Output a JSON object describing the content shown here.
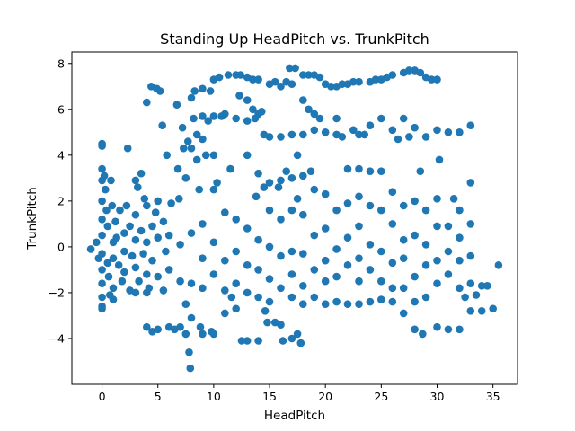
{
  "chart_data": {
    "type": "scatter",
    "title": "Standing Up HeadPitch vs. TrunkPitch",
    "xlabel": "HeadPitch",
    "ylabel": "TrunkPitch",
    "xlim": [
      -2.7,
      37.2
    ],
    "ylim": [
      -6.0,
      8.5
    ],
    "xticks": [
      0,
      5,
      10,
      15,
      20,
      25,
      30,
      35
    ],
    "yticks": [
      -4,
      -2,
      0,
      2,
      4,
      6,
      8
    ],
    "grid": false,
    "legend": "none",
    "marker_color": "#1f77b4",
    "points": [
      [
        -1,
        -0.1
      ],
      [
        -0.5,
        0.2
      ],
      [
        -0.3,
        -0.5
      ],
      [
        0,
        4.5
      ],
      [
        0,
        4.4
      ],
      [
        0,
        3.4
      ],
      [
        0,
        2.9
      ],
      [
        0,
        2.0
      ],
      [
        0,
        1.2
      ],
      [
        0,
        0.5
      ],
      [
        0,
        -0.3
      ],
      [
        0,
        -1.0
      ],
      [
        0,
        -1.6
      ],
      [
        0,
        -2.2
      ],
      [
        0,
        -2.6
      ],
      [
        0,
        -2.7
      ],
      [
        0.2,
        3.1
      ],
      [
        0.3,
        2.5
      ],
      [
        0.4,
        1.6
      ],
      [
        0.5,
        0.9
      ],
      [
        0.5,
        -0.7
      ],
      [
        0.6,
        -1.3
      ],
      [
        0.7,
        -2.1
      ],
      [
        0.8,
        2.9
      ],
      [
        0.9,
        1.8
      ],
      [
        1,
        0.2
      ],
      [
        1,
        -0.5
      ],
      [
        1,
        -1.8
      ],
      [
        1,
        -2.3
      ],
      [
        1.2,
        1.1
      ],
      [
        1.3,
        0.4
      ],
      [
        1.5,
        -0.8
      ],
      [
        1.6,
        1.6
      ],
      [
        1.8,
        -1.5
      ],
      [
        2,
        0.6
      ],
      [
        2,
        -0.2
      ],
      [
        2,
        -1.1
      ],
      [
        2.2,
        1.8
      ],
      [
        2.3,
        4.3
      ],
      [
        2.5,
        -1.9
      ],
      [
        2.5,
        0.9
      ],
      [
        2.7,
        -0.4
      ],
      [
        3,
        2.9
      ],
      [
        3,
        1.4
      ],
      [
        3,
        0.3
      ],
      [
        3,
        -0.9
      ],
      [
        3,
        -2.0
      ],
      [
        3.2,
        2.6
      ],
      [
        3.3,
        -1.5
      ],
      [
        3.5,
        3.2
      ],
      [
        3.5,
        0.7
      ],
      [
        3.7,
        -0.3
      ],
      [
        3.8,
        2.1
      ],
      [
        4,
        6.3
      ],
      [
        4,
        1.8
      ],
      [
        4,
        0.2
      ],
      [
        4,
        -1.2
      ],
      [
        4,
        -2.0
      ],
      [
        4,
        -3.5
      ],
      [
        4.2,
        -1.8
      ],
      [
        4.4,
        7.0
      ],
      [
        4.5,
        0.9
      ],
      [
        4.5,
        -0.6
      ],
      [
        4.5,
        -3.7
      ],
      [
        4.8,
        1.5
      ],
      [
        4.9,
        6.9
      ],
      [
        5,
        2.0
      ],
      [
        5,
        0.4
      ],
      [
        5,
        -1.3
      ],
      [
        5,
        -3.6
      ],
      [
        5.2,
        6.8
      ],
      [
        5.4,
        5.3
      ],
      [
        5.5,
        -1.9
      ],
      [
        5.5,
        1.1
      ],
      [
        5.7,
        -0.2
      ],
      [
        5.8,
        4.0
      ],
      [
        6,
        0.5
      ],
      [
        6,
        -3.5
      ],
      [
        6,
        -1.0
      ],
      [
        6.2,
        1.9
      ],
      [
        6.5,
        -3.6
      ],
      [
        6.7,
        6.2
      ],
      [
        6.8,
        3.4
      ],
      [
        6.9,
        2.1
      ],
      [
        7,
        0.1
      ],
      [
        7,
        -1.5
      ],
      [
        7,
        -3.5
      ],
      [
        7.2,
        5.2
      ],
      [
        7.3,
        4.3
      ],
      [
        7.5,
        3.0
      ],
      [
        7.5,
        -2.5
      ],
      [
        7.5,
        -3.8
      ],
      [
        7.7,
        4.6
      ],
      [
        7.8,
        -4.6
      ],
      [
        7.9,
        -5.3
      ],
      [
        8,
        6.5
      ],
      [
        8,
        4.3
      ],
      [
        8,
        0.6
      ],
      [
        8,
        -1.6
      ],
      [
        8,
        -3.1
      ],
      [
        8.2,
        5.6
      ],
      [
        8.3,
        6.8
      ],
      [
        8.5,
        4.9
      ],
      [
        8.5,
        3.8
      ],
      [
        8.7,
        2.5
      ],
      [
        8.8,
        -3.5
      ],
      [
        9,
        6.9
      ],
      [
        9,
        5.7
      ],
      [
        9,
        4.7
      ],
      [
        9,
        1.0
      ],
      [
        9,
        -0.5
      ],
      [
        9,
        -1.8
      ],
      [
        9,
        -3.8
      ],
      [
        9.3,
        4.0
      ],
      [
        9.5,
        5.5
      ],
      [
        9.7,
        6.8
      ],
      [
        9.8,
        -3.7
      ],
      [
        10,
        5.7
      ],
      [
        10,
        7.3
      ],
      [
        10,
        4.0
      ],
      [
        10,
        2.5
      ],
      [
        10,
        0.2
      ],
      [
        10,
        -1.2
      ],
      [
        10,
        -3.8
      ],
      [
        10.3,
        2.8
      ],
      [
        10.5,
        7.4
      ],
      [
        10.7,
        5.7
      ],
      [
        11,
        5.8
      ],
      [
        11,
        1.5
      ],
      [
        11,
        -0.6
      ],
      [
        11,
        -1.9
      ],
      [
        11,
        -2.9
      ],
      [
        11.3,
        7.5
      ],
      [
        11.5,
        3.4
      ],
      [
        11.6,
        -2.2
      ],
      [
        12,
        7.5
      ],
      [
        12,
        5.6
      ],
      [
        12,
        1.2
      ],
      [
        12,
        -0.2
      ],
      [
        12,
        -1.6
      ],
      [
        12,
        -2.7
      ],
      [
        12.3,
        6.6
      ],
      [
        12.4,
        7.5
      ],
      [
        12.5,
        -4.1
      ],
      [
        13,
        6.4
      ],
      [
        13,
        7.4
      ],
      [
        13,
        5.5
      ],
      [
        13,
        4.0
      ],
      [
        13,
        0.8
      ],
      [
        13,
        -0.8
      ],
      [
        13,
        -2.0
      ],
      [
        13,
        -4.1
      ],
      [
        13.5,
        6.0
      ],
      [
        13.5,
        7.3
      ],
      [
        13.7,
        5.6
      ],
      [
        13.8,
        2.2
      ],
      [
        14,
        7.3
      ],
      [
        14,
        5.8
      ],
      [
        14,
        3.2
      ],
      [
        14,
        0.3
      ],
      [
        14,
        -1.0
      ],
      [
        14,
        -2.2
      ],
      [
        14,
        -4.1
      ],
      [
        14.3,
        5.9
      ],
      [
        14.5,
        4.9
      ],
      [
        14.5,
        2.6
      ],
      [
        14.6,
        -2.8
      ],
      [
        14.8,
        -3.3
      ],
      [
        15,
        7.1
      ],
      [
        15,
        4.8
      ],
      [
        15,
        2.8
      ],
      [
        15,
        1.6
      ],
      [
        15,
        0.0
      ],
      [
        15,
        -1.4
      ],
      [
        15,
        -2.4
      ],
      [
        15.5,
        7.2
      ],
      [
        15.5,
        -3.3
      ],
      [
        15.8,
        2.6
      ],
      [
        16,
        7.0
      ],
      [
        16,
        4.8
      ],
      [
        16,
        2.9
      ],
      [
        16,
        1.2
      ],
      [
        16,
        -0.4
      ],
      [
        16,
        -1.8
      ],
      [
        16,
        -3.4
      ],
      [
        16.2,
        -4.1
      ],
      [
        16.5,
        7.2
      ],
      [
        16.5,
        3.3
      ],
      [
        16.8,
        7.8
      ],
      [
        17,
        7.1
      ],
      [
        17,
        4.9
      ],
      [
        17,
        3.0
      ],
      [
        17,
        1.6
      ],
      [
        17,
        -0.2
      ],
      [
        17,
        -1.2
      ],
      [
        17,
        -2.2
      ],
      [
        17,
        -4.0
      ],
      [
        17.3,
        7.8
      ],
      [
        17.5,
        4.0
      ],
      [
        17.5,
        2.1
      ],
      [
        17.5,
        -3.8
      ],
      [
        17.8,
        -4.2
      ],
      [
        18,
        7.5
      ],
      [
        18,
        6.4
      ],
      [
        18,
        4.9
      ],
      [
        18,
        3.1
      ],
      [
        18,
        1.4
      ],
      [
        18,
        -0.3
      ],
      [
        18,
        -1.7
      ],
      [
        18,
        -2.5
      ],
      [
        18.5,
        7.5
      ],
      [
        18.5,
        6.0
      ],
      [
        18.7,
        3.3
      ],
      [
        19,
        7.5
      ],
      [
        19,
        5.8
      ],
      [
        19,
        5.1
      ],
      [
        19,
        2.5
      ],
      [
        19,
        0.5
      ],
      [
        19,
        -1.0
      ],
      [
        19,
        -2.2
      ],
      [
        19.5,
        5.6
      ],
      [
        19.5,
        7.4
      ],
      [
        20,
        7.1
      ],
      [
        20,
        5.0
      ],
      [
        20,
        2.3
      ],
      [
        20,
        0.8
      ],
      [
        20,
        -0.6
      ],
      [
        20,
        -1.5
      ],
      [
        20,
        -2.5
      ],
      [
        20.5,
        7.0
      ],
      [
        21,
        7.0
      ],
      [
        21,
        5.6
      ],
      [
        21,
        4.9
      ],
      [
        21,
        1.6
      ],
      [
        21,
        -0.1
      ],
      [
        21,
        -1.3
      ],
      [
        21,
        -2.4
      ],
      [
        21.5,
        7.1
      ],
      [
        21.5,
        4.8
      ],
      [
        22,
        7.1
      ],
      [
        22,
        3.4
      ],
      [
        22,
        1.9
      ],
      [
        22,
        0.4
      ],
      [
        22,
        -0.8
      ],
      [
        22,
        -2.5
      ],
      [
        22.5,
        7.2
      ],
      [
        22.5,
        5.1
      ],
      [
        23,
        7.2
      ],
      [
        23,
        4.9
      ],
      [
        23,
        3.4
      ],
      [
        23,
        2.2
      ],
      [
        23,
        0.9
      ],
      [
        23,
        -0.5
      ],
      [
        23,
        -1.5
      ],
      [
        23,
        -2.5
      ],
      [
        23.5,
        4.9
      ],
      [
        24,
        7.2
      ],
      [
        24,
        5.3
      ],
      [
        24,
        3.3
      ],
      [
        24,
        1.8
      ],
      [
        24,
        0.1
      ],
      [
        24,
        -1.0
      ],
      [
        24,
        -2.4
      ],
      [
        24.5,
        7.3
      ],
      [
        25,
        7.3
      ],
      [
        25,
        5.6
      ],
      [
        25,
        3.3
      ],
      [
        25,
        1.6
      ],
      [
        25,
        -0.2
      ],
      [
        25,
        -1.5
      ],
      [
        25,
        -2.3
      ],
      [
        25.5,
        7.4
      ],
      [
        26,
        7.5
      ],
      [
        26,
        5.1
      ],
      [
        26,
        2.4
      ],
      [
        26,
        1.0
      ],
      [
        26,
        -0.7
      ],
      [
        26,
        -1.8
      ],
      [
        26,
        -2.4
      ],
      [
        26.5,
        4.7
      ],
      [
        27,
        7.6
      ],
      [
        27,
        5.6
      ],
      [
        27,
        1.8
      ],
      [
        27,
        0.3
      ],
      [
        27,
        -0.5
      ],
      [
        27,
        -1.8
      ],
      [
        27,
        -2.9
      ],
      [
        27.5,
        7.7
      ],
      [
        27.5,
        4.8
      ],
      [
        28,
        7.7
      ],
      [
        28,
        5.2
      ],
      [
        28,
        2.0
      ],
      [
        28,
        0.5
      ],
      [
        28,
        -1.3
      ],
      [
        28,
        -2.4
      ],
      [
        28,
        -3.6
      ],
      [
        28.5,
        7.6
      ],
      [
        28.5,
        3.3
      ],
      [
        28.7,
        -3.8
      ],
      [
        29,
        7.4
      ],
      [
        29,
        4.8
      ],
      [
        29,
        1.6
      ],
      [
        29,
        0.1
      ],
      [
        29,
        -0.8
      ],
      [
        29,
        -2.2
      ],
      [
        29.5,
        7.3
      ],
      [
        30,
        7.3
      ],
      [
        30,
        5.1
      ],
      [
        30,
        2.1
      ],
      [
        30,
        0.9
      ],
      [
        30,
        -0.6
      ],
      [
        30,
        -1.6
      ],
      [
        30,
        -3.5
      ],
      [
        30.2,
        3.8
      ],
      [
        31,
        5.0
      ],
      [
        31,
        0.9
      ],
      [
        31,
        -0.2
      ],
      [
        31,
        -1.2
      ],
      [
        31,
        -3.6
      ],
      [
        31.5,
        2.1
      ],
      [
        32,
        5.0
      ],
      [
        32,
        1.6
      ],
      [
        32,
        0.4
      ],
      [
        32,
        -0.6
      ],
      [
        32,
        -1.8
      ],
      [
        32,
        -3.6
      ],
      [
        32.5,
        -2.2
      ],
      [
        33,
        5.3
      ],
      [
        33,
        2.8
      ],
      [
        33,
        1.0
      ],
      [
        33,
        -0.4
      ],
      [
        33,
        -1.6
      ],
      [
        33,
        -2.8
      ],
      [
        33.5,
        -2.1
      ],
      [
        34,
        -1.7
      ],
      [
        34,
        -2.8
      ],
      [
        34.5,
        -1.7
      ],
      [
        35,
        -2.7
      ],
      [
        35.5,
        -0.8
      ]
    ]
  }
}
